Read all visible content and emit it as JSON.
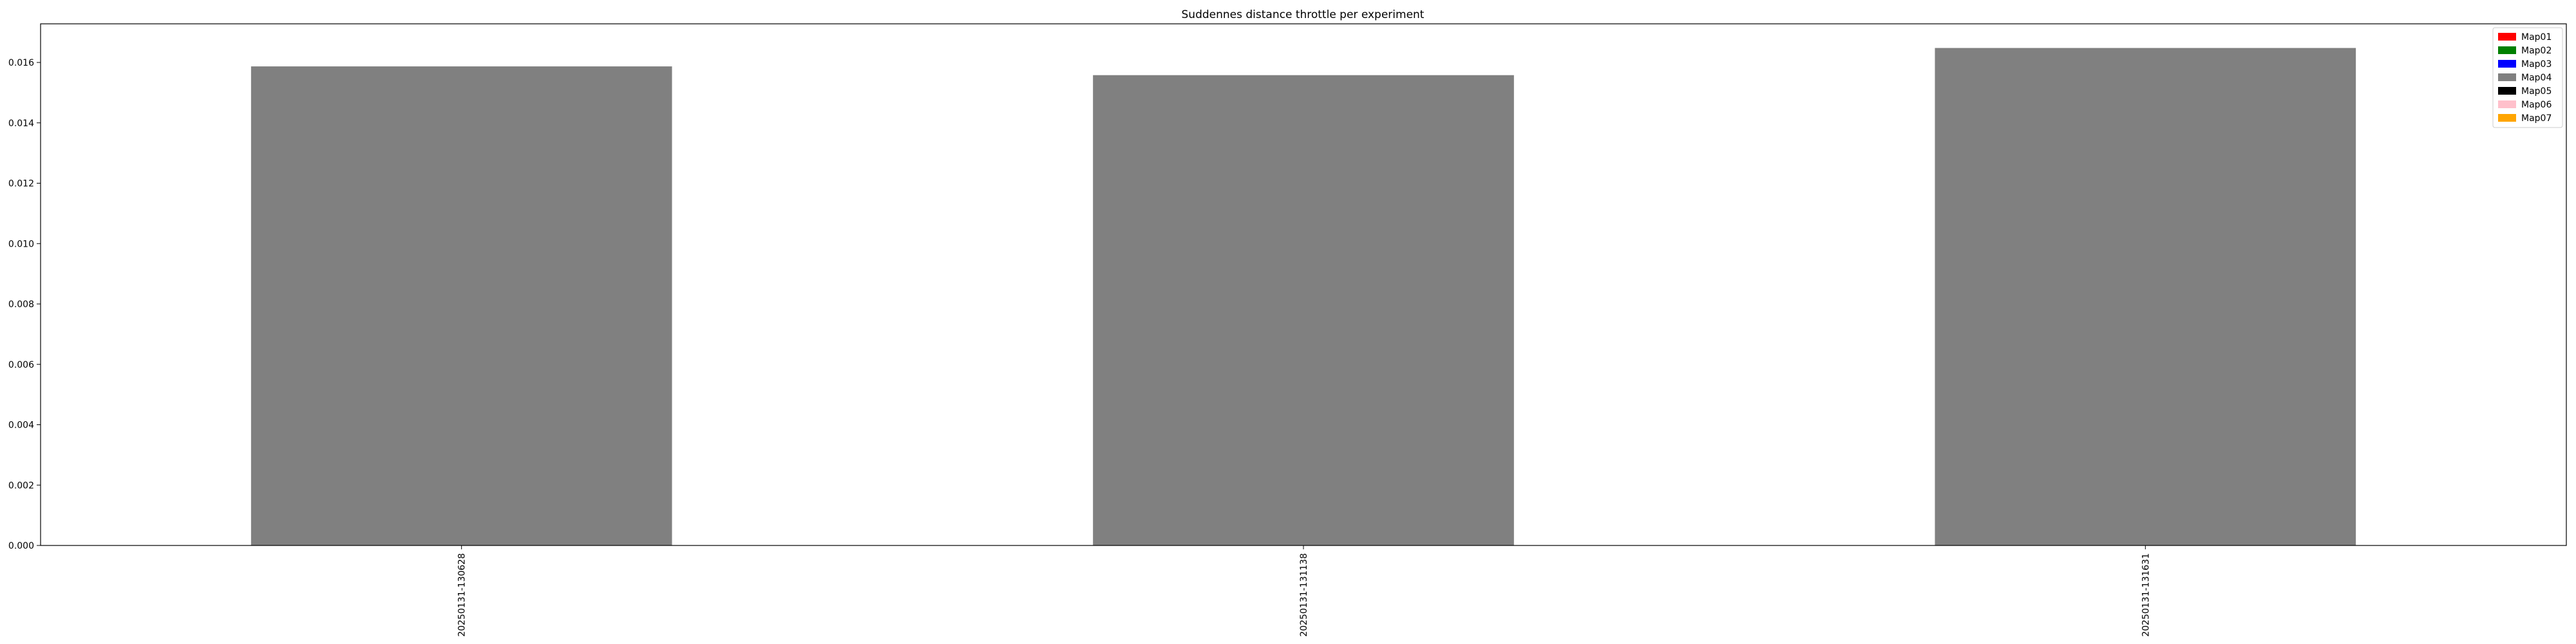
{
  "chart_data": {
    "type": "bar",
    "title": "Suddennes distance throttle per experiment",
    "xlabel": "",
    "ylabel": "",
    "categories": [
      "20250131-130628",
      "20250131-131138",
      "20250131-131631"
    ],
    "series": [
      {
        "name": "Map04",
        "color": "#808080",
        "values": [
          0.01587,
          0.01558,
          0.01648
        ]
      }
    ],
    "ylim": [
      0,
      0.01728
    ],
    "yticks": [
      0.0,
      0.002,
      0.004,
      0.006,
      0.008,
      0.01,
      0.012,
      0.014,
      0.016
    ],
    "ytick_labels": [
      "0.000",
      "0.002",
      "0.004",
      "0.006",
      "0.008",
      "0.010",
      "0.012",
      "0.014",
      "0.016"
    ],
    "grid": false,
    "legend": {
      "placement": "top-right",
      "entries": [
        {
          "name": "Map01",
          "color": "#ff0000"
        },
        {
          "name": "Map02",
          "color": "#008000"
        },
        {
          "name": "Map03",
          "color": "#0000ff"
        },
        {
          "name": "Map04",
          "color": "#808080"
        },
        {
          "name": "Map05",
          "color": "#000000"
        },
        {
          "name": "Map06",
          "color": "#ffc0cb"
        },
        {
          "name": "Map07",
          "color": "#ffa500"
        }
      ]
    }
  }
}
